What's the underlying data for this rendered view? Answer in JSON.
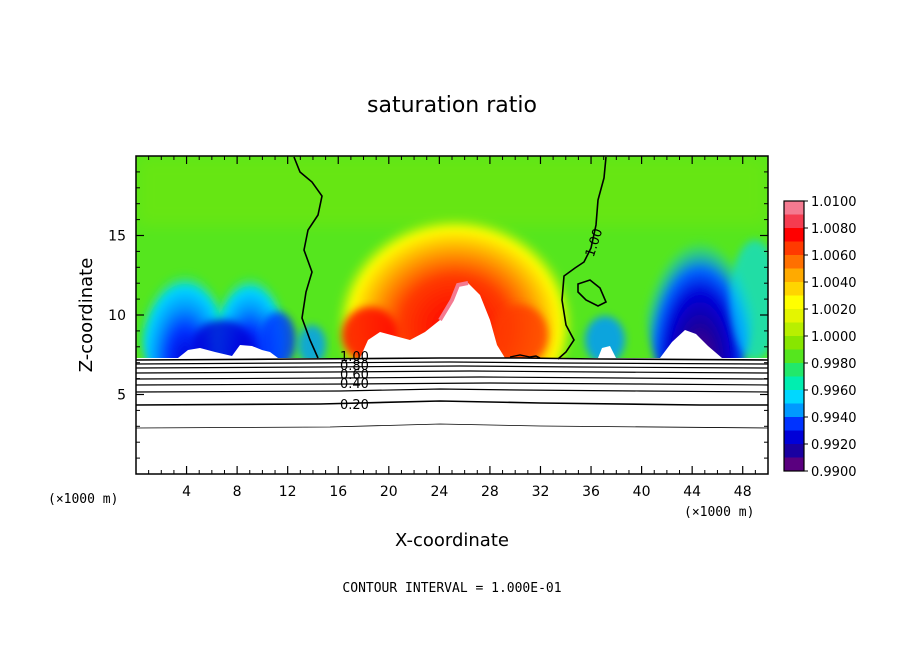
{
  "chart_data": {
    "type": "heatmap",
    "title": "saturation ratio",
    "xlabel": "X-coordinate",
    "ylabel": "Z-coordinate",
    "x_unit_left": "(×1000 m)",
    "x_unit_right": "(×1000 m)",
    "xlim": [
      0,
      50
    ],
    "ylim": [
      0,
      20
    ],
    "x_ticks": [
      4,
      8,
      12,
      16,
      20,
      24,
      28,
      32,
      36,
      40,
      44,
      48
    ],
    "y_ticks": [
      5,
      10,
      15
    ],
    "colorbar": {
      "levels": [
        0.99,
        0.991,
        0.992,
        0.993,
        0.994,
        0.995,
        0.996,
        0.997,
        0.998,
        0.999,
        1.0,
        1.001,
        1.002,
        1.003,
        1.004,
        1.005,
        1.006,
        1.007,
        1.008,
        1.009,
        1.01
      ],
      "labels": [
        "0.9900",
        "0.9920",
        "0.9940",
        "0.9960",
        "0.9980",
        "1.0000",
        "1.0020",
        "1.0040",
        "1.0060",
        "1.0080",
        "1.0100"
      ],
      "colors": [
        "#5a007f",
        "#1a00a0",
        "#0000d8",
        "#0033ff",
        "#0099ff",
        "#00d8ff",
        "#00eeb0",
        "#22e86a",
        "#55e61e",
        "#88e600",
        "#b8ef00",
        "#e4f500",
        "#ffff00",
        "#ffd500",
        "#ffaa00",
        "#ff7000",
        "#ff3a00",
        "#ff0000",
        "#f53c50",
        "#f47a90"
      ]
    },
    "contour_labels": [
      "1.00",
      "1.00",
      "0.80",
      "0.60",
      "0.40",
      "0.20"
    ],
    "footer": "CONTOUR INTERVAL = 1.000E-01",
    "grid": false,
    "legend": "colorbar-right"
  }
}
